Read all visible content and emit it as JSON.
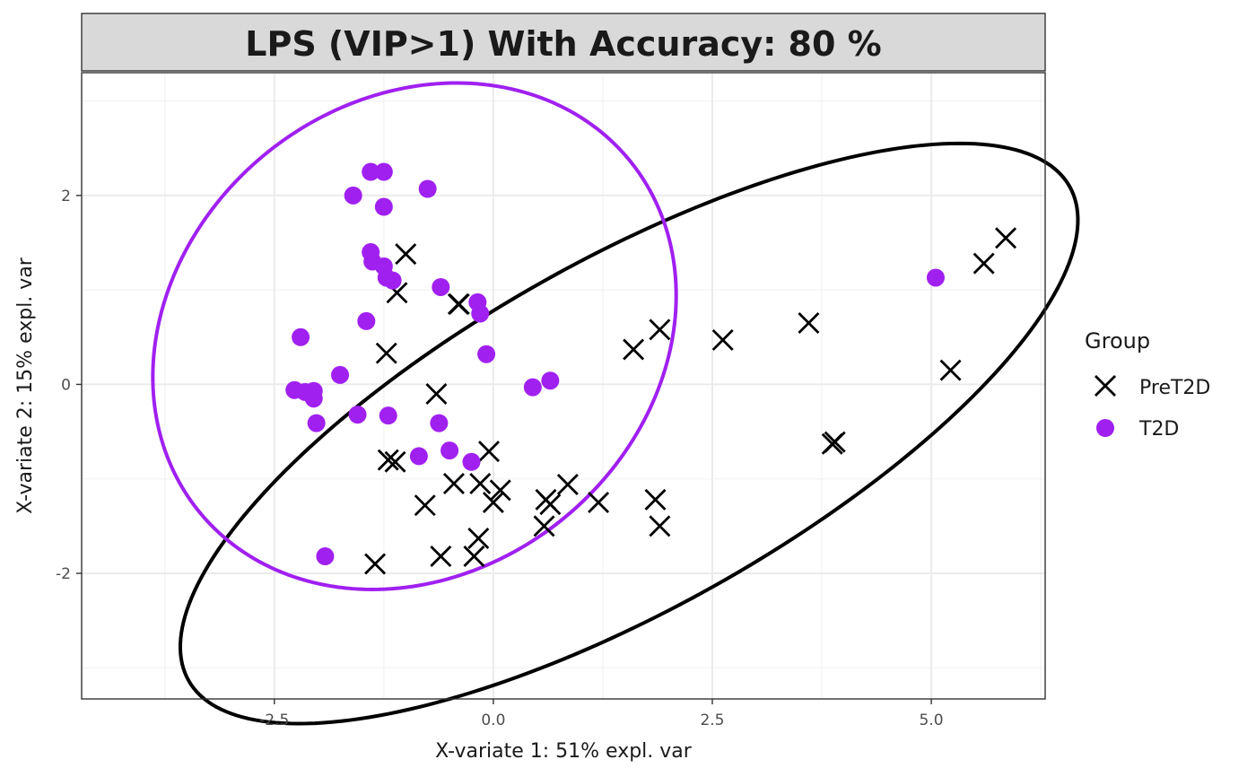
{
  "chart_data": {
    "type": "scatter",
    "title": "LPS (VIP>1) With Accuracy: 80 %",
    "xlabel": "X-variate 1: 51% expl. var",
    "ylabel": "X-variate 2: 15% expl. var",
    "xlim": [
      -4.7,
      6.3
    ],
    "ylim": [
      -3.33,
      3.3
    ],
    "x_ticks": [
      -2.5,
      0.0,
      2.5,
      5.0
    ],
    "x_tick_labels": [
      "-2.5",
      "0.0",
      "2.5",
      "5.0"
    ],
    "y_ticks": [
      -2,
      0,
      2
    ],
    "y_tick_labels": [
      "-2",
      "0",
      "2"
    ],
    "grid": true,
    "legend": {
      "title": "Group",
      "position": "right"
    },
    "series": [
      {
        "name": "PreT2D",
        "marker": "x",
        "color": "#000000",
        "x": [
          5.85,
          5.6,
          5.22,
          3.6,
          3.87,
          3.9,
          2.62,
          1.9,
          1.6,
          1.85,
          1.9,
          1.2,
          0.85,
          0.65,
          0.6,
          0.58,
          0.08,
          0.0,
          -0.05,
          -0.15,
          -0.17,
          -0.22,
          -0.4,
          -0.45,
          -0.6,
          -0.65,
          -0.78,
          -1.0,
          -1.1,
          -1.12,
          -1.2,
          -1.35,
          -1.22,
          -0.39
        ],
        "y": [
          1.55,
          1.28,
          0.15,
          0.65,
          -0.63,
          -0.61,
          0.47,
          0.58,
          0.37,
          -1.22,
          -1.5,
          -1.25,
          -1.06,
          -1.27,
          -1.22,
          -1.5,
          -1.12,
          -1.25,
          -0.71,
          -1.05,
          -1.63,
          -1.82,
          0.85,
          -1.05,
          -1.82,
          -0.1,
          -1.28,
          1.38,
          0.97,
          -0.82,
          -0.8,
          -1.9,
          0.33,
          0.85
        ]
      },
      {
        "name": "T2D",
        "marker": "circle",
        "color": "#a020f0",
        "x": [
          -1.4,
          -1.25,
          -0.75,
          -1.6,
          -1.25,
          -1.4,
          -1.38,
          -1.25,
          -1.22,
          -1.15,
          -0.6,
          -0.18,
          -0.15,
          -1.45,
          -2.2,
          -0.08,
          -1.75,
          -2.27,
          -2.15,
          -2.05,
          -2.05,
          -1.55,
          -1.2,
          -2.02,
          -0.62,
          -0.5,
          -0.85,
          -0.25,
          0.45,
          0.65,
          -1.92,
          5.05
        ],
        "y": [
          2.25,
          2.25,
          2.07,
          2.0,
          1.88,
          1.4,
          1.3,
          1.25,
          1.13,
          1.1,
          1.03,
          0.87,
          0.75,
          0.67,
          0.5,
          0.32,
          0.1,
          -0.06,
          -0.08,
          -0.07,
          -0.15,
          -0.32,
          -0.33,
          -0.41,
          -0.41,
          -0.7,
          -0.76,
          -0.82,
          -0.03,
          0.04,
          -1.82,
          1.13
        ]
      }
    ],
    "ellipses": [
      {
        "series": "PreT2D",
        "color": "#000000",
        "center": [
          1.55,
          -0.52
        ],
        "semi_axis_1": 5.67,
        "semi_axis_2": 1.88,
        "angle_deg": 27
      },
      {
        "series": "T2D",
        "color": "#a020f0",
        "center": [
          -0.9,
          0.51
        ],
        "semi_axis_1": 2.55,
        "semi_axis_2": 3.1,
        "angle_deg": 118
      }
    ]
  }
}
